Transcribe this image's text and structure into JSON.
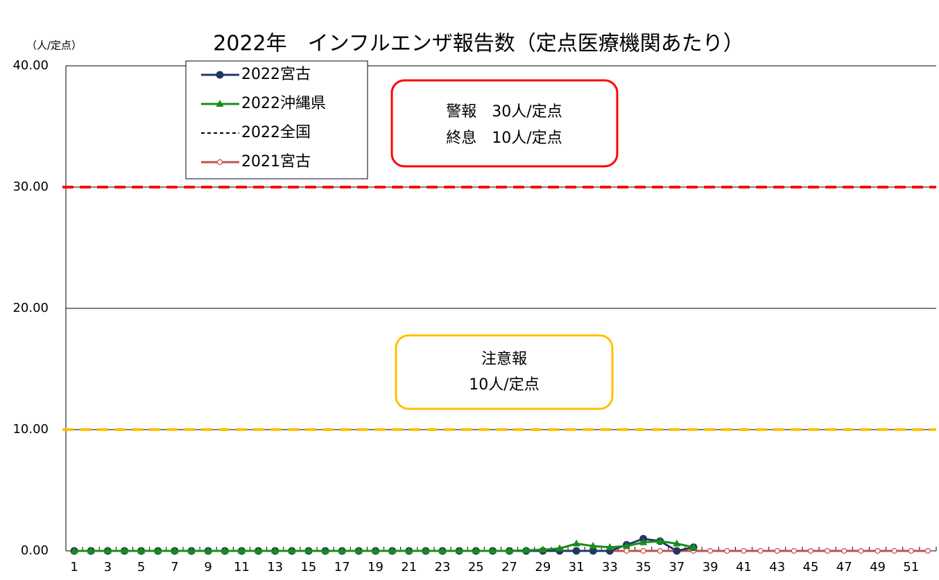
{
  "chart_data": {
    "type": "line",
    "title": "2022年　インフルエンザ報告数（定点医療機関あたり）",
    "y_label": "（人/定点）",
    "annotations": [
      {
        "lines": [
          "警報　30人/定点",
          "終息　10人/定点"
        ],
        "color": "#ff0000"
      },
      {
        "lines": [
          "注意報",
          "10人/定点"
        ],
        "color": "#ffc000"
      }
    ],
    "reference_lines": [
      {
        "value": 30,
        "color": "#ff0000"
      },
      {
        "value": 10,
        "color": "#ffc000"
      }
    ],
    "categories": [
      "1",
      null,
      "3",
      null,
      "5",
      null,
      "7",
      null,
      "9",
      null,
      "11",
      null,
      "13",
      null,
      "15",
      null,
      "17",
      null,
      "19",
      null,
      "21",
      null,
      "23",
      null,
      "25",
      null,
      "27",
      null,
      "29",
      null,
      "31",
      null,
      "33",
      null,
      "35",
      null,
      "37",
      null,
      "39",
      null,
      "41",
      null,
      "43",
      null,
      "45",
      null,
      "47",
      null,
      "49",
      null,
      "51",
      null
    ],
    "ylim": [
      0,
      40
    ],
    "yticks": [
      {
        "value": 0,
        "label": "0.00"
      },
      {
        "value": 10,
        "label": "10.00"
      },
      {
        "value": 20,
        "label": "20.00"
      },
      {
        "value": 30,
        "label": "30.00"
      },
      {
        "value": 40,
        "label": "40.00"
      }
    ],
    "grid": true,
    "series": [
      {
        "name": "2022全国",
        "color": "#000000",
        "marker": "none",
        "dash": true,
        "values": [
          0,
          0,
          0,
          0,
          0,
          0,
          0,
          0,
          0,
          0,
          0,
          0,
          0,
          0,
          0,
          0,
          0,
          0,
          0,
          0,
          0,
          0,
          0,
          0,
          0,
          0,
          0,
          0,
          0,
          0,
          0,
          0,
          0,
          0,
          0,
          0,
          0,
          0,
          null,
          null,
          null,
          null,
          null,
          null,
          null,
          null,
          null,
          null,
          null,
          null,
          null,
          null
        ]
      },
      {
        "name": "2021宮古",
        "color": "#c0504d",
        "marker": "open-circle",
        "values": [
          0,
          0,
          0,
          0,
          0,
          0,
          0,
          0,
          0,
          0,
          0,
          0,
          0,
          0,
          0,
          0,
          0,
          0,
          0,
          0,
          0,
          0,
          0,
          0,
          0,
          0,
          0,
          0,
          0,
          0,
          0,
          0,
          0,
          0,
          0,
          0,
          0,
          0,
          0,
          0,
          0,
          0,
          0,
          0,
          0,
          0,
          0,
          0,
          0,
          0,
          0,
          0
        ]
      },
      {
        "name": "2022宮古",
        "color": "#1f3864",
        "marker": "circle",
        "values": [
          0,
          0,
          0,
          0,
          0,
          0,
          0,
          0,
          0,
          0,
          0,
          0,
          0,
          0,
          0,
          0,
          0,
          0,
          0,
          0,
          0,
          0,
          0,
          0,
          0,
          0,
          0,
          0,
          0,
          0,
          0,
          0,
          0,
          0.5,
          1.0,
          0.8,
          0,
          0.3,
          null,
          null,
          null,
          null,
          null,
          null,
          null,
          null,
          null,
          null,
          null,
          null,
          null,
          null
        ]
      },
      {
        "name": "2022沖縄県",
        "color": "#1a8c1a",
        "marker": "triangle",
        "values": [
          0,
          0,
          0,
          0,
          0,
          0,
          0,
          0,
          0,
          0,
          0,
          0,
          0,
          0,
          0,
          0,
          0,
          0,
          0,
          0,
          0,
          0,
          0,
          0,
          0,
          0,
          0,
          0.05,
          0.1,
          0.2,
          0.6,
          0.4,
          0.3,
          0.4,
          0.7,
          0.8,
          0.6,
          0.3,
          null,
          null,
          null,
          null,
          null,
          null,
          null,
          null,
          null,
          null,
          null,
          null,
          null,
          null
        ]
      }
    ],
    "legend_order": [
      2,
      3,
      0,
      1
    ]
  }
}
